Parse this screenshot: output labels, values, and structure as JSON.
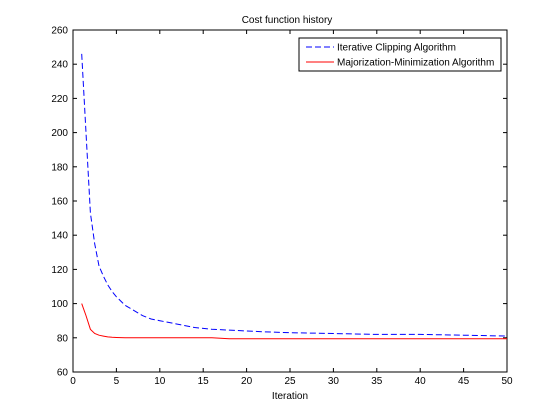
{
  "chart_data": {
    "type": "line",
    "title": "Cost function history",
    "xlabel": "Iteration",
    "ylabel": "",
    "xlim": [
      0,
      50
    ],
    "ylim": [
      60,
      260
    ],
    "xticks": [
      0,
      5,
      10,
      15,
      20,
      25,
      30,
      35,
      40,
      45,
      50
    ],
    "yticks": [
      60,
      80,
      100,
      120,
      140,
      160,
      180,
      200,
      220,
      240,
      260
    ],
    "grid": false,
    "legend_position": "top-right",
    "x": [
      1,
      1.5,
      2,
      2.5,
      3,
      3.5,
      4,
      4.5,
      5,
      6,
      7,
      8,
      9,
      10,
      12,
      14,
      16,
      18,
      20,
      22,
      25,
      30,
      35,
      40,
      45,
      50
    ],
    "series": [
      {
        "name": "Iterative Clipping Algorithm",
        "color": "#0000ff",
        "style": "dashed",
        "values": [
          246,
          200,
          153,
          135,
          122,
          116,
          111,
          107,
          104,
          99,
          96,
          93,
          91,
          90,
          88,
          86,
          85,
          84.5,
          84,
          83.5,
          83,
          82.5,
          82,
          82,
          81.5,
          81
        ]
      },
      {
        "name": "Majorization-Minimization Algorithm",
        "color": "#ff0000",
        "style": "solid",
        "values": [
          100,
          93,
          85,
          82.5,
          81.5,
          81,
          80.5,
          80.3,
          80.2,
          80,
          80,
          80,
          80,
          80,
          80,
          80,
          80,
          79.5,
          79.5,
          79.5,
          79.5,
          79.5,
          79.5,
          79.5,
          79.5,
          79.5
        ]
      }
    ]
  }
}
